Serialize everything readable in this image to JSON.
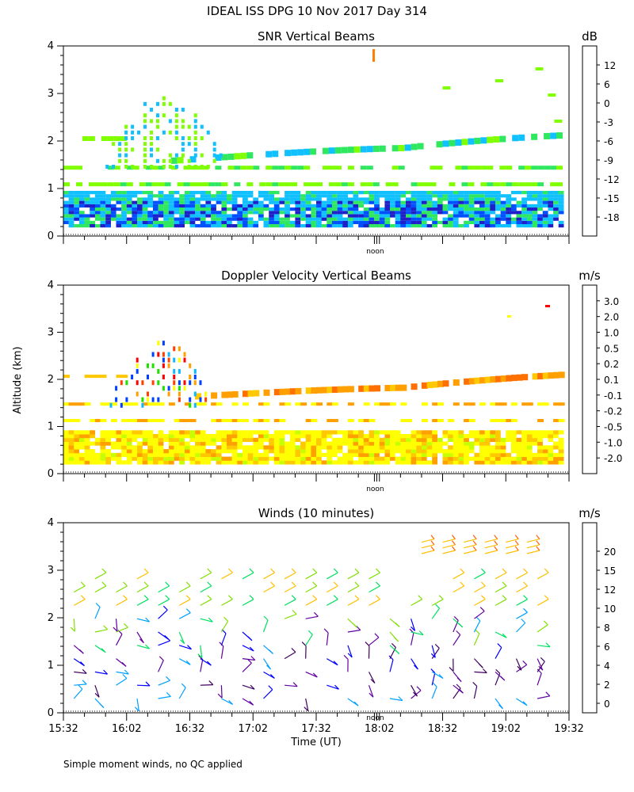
{
  "figure": {
    "title": "IDEAL ISS DPG  10 Nov 2017 Day 314",
    "footer": "Simple moment winds, no QC applied",
    "noon_label": "noon",
    "ylabel": "Altitude (km)",
    "xlabel": "Time (UT)"
  },
  "chart_data": [
    {
      "type": "heatmap",
      "title": "SNR Vertical Beams",
      "ylabel": "Altitude (km)",
      "ylim": [
        0,
        4
      ],
      "yticks": [
        "0",
        "1",
        "2",
        "3",
        "4"
      ],
      "x_range_ut": [
        "15:32",
        "19:32"
      ],
      "colorbar": {
        "units": "dB",
        "labels": [
          "-18",
          "-15",
          "-12",
          "-9",
          "-6",
          "-3",
          "0",
          "6",
          "12"
        ],
        "colors": [
          "#80ff00",
          "#30e860",
          "#10c0ff",
          "#0050ff",
          "#2020c8",
          "#5000b0",
          "#380060",
          "#ff2000",
          "#ff8000",
          "#ffb000"
        ]
      }
    },
    {
      "type": "heatmap",
      "title": "Doppler Velocity Vertical Beams",
      "ylabel": "Altitude (km)",
      "ylim": [
        0,
        4
      ],
      "yticks": [
        "0",
        "1",
        "2",
        "3",
        "4"
      ],
      "x_range_ut": [
        "15:32",
        "19:32"
      ],
      "colorbar": {
        "units": "m/s",
        "labels": [
          "-2.0",
          "-1.0",
          "-0.5",
          "-0.2",
          "-0.1",
          "0.1",
          "0.2",
          "0.5",
          "1.0",
          "2.0",
          "3.0"
        ],
        "colors": [
          "#ff0000",
          "#ff4000",
          "#ff7000",
          "#ffa000",
          "#ffc800",
          "#ffff00",
          "#c8ff00",
          "#20e000",
          "#10b8ff",
          "#0040ff",
          "#4000a0",
          "#300040"
        ]
      }
    },
    {
      "type": "wind_barbs",
      "title": "Winds (10 minutes)",
      "ylabel": "Altitude (km)",
      "xlabel": "Time (UT)",
      "ylim": [
        0,
        4
      ],
      "yticks": [
        "0",
        "1",
        "2",
        "3",
        "4"
      ],
      "xticks": [
        "15:32",
        "16:02",
        "16:32",
        "17:02",
        "17:32",
        "18:02",
        "18:32",
        "19:02",
        "19:32"
      ],
      "colorbar": {
        "units": "m/s",
        "labels": [
          "0",
          "2",
          "4",
          "6",
          "8",
          "10",
          "12",
          "15",
          "20"
        ],
        "colors": [
          "#000000",
          "#400060",
          "#6000a0",
          "#0000ff",
          "#00a0ff",
          "#00e060",
          "#80e000",
          "#ffc000",
          "#ff6000",
          "#ff0000"
        ]
      }
    }
  ]
}
